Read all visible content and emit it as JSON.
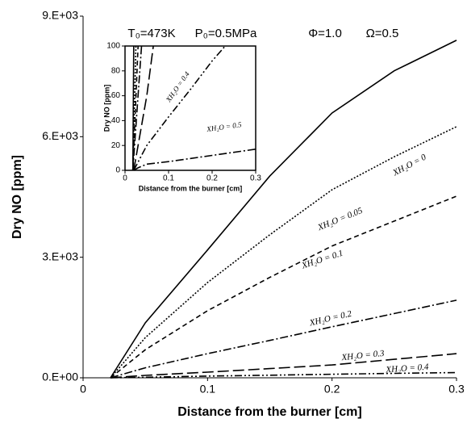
{
  "chart_data": [
    {
      "type": "line",
      "annotations": [
        "T₀=473K",
        "P₀=0.5MPa",
        "Φ=1.0",
        "Ω=0.5"
      ],
      "x_label": "Distance from the burner [cm]",
      "y_label": "Dry NO [ppm]",
      "xlim": [
        0,
        0.3
      ],
      "ylim": [
        0,
        9000
      ],
      "xticks": [
        0,
        0.1,
        0.2,
        0.3
      ],
      "yticks": [
        {
          "value": 0,
          "label": "0.E+00"
        },
        {
          "value": 3000,
          "label": "3.E+03"
        },
        {
          "value": 6000,
          "label": "6.E+03"
        },
        {
          "value": 9000,
          "label": "9.E+03"
        }
      ],
      "x": [
        0.022,
        0.05,
        0.1,
        0.15,
        0.2,
        0.25,
        0.3
      ],
      "series": [
        {
          "name": "XH₂O = 0",
          "color": "#000000",
          "dash": "solid",
          "values": [
            0,
            1370,
            3180,
            5020,
            6590,
            7640,
            8400
          ]
        },
        {
          "name": "XH₂O = 0.05",
          "color": "#000000",
          "dash": "dotted",
          "values": [
            0,
            1000,
            2370,
            3560,
            4680,
            5500,
            6250
          ]
        },
        {
          "name": "XH₂O = 0.1",
          "color": "#000000",
          "dash": "dashed",
          "values": [
            0,
            700,
            1670,
            2500,
            3280,
            3900,
            4520
          ]
        },
        {
          "name": "XH₂O = 0.2",
          "color": "#000000",
          "dash": "dashdot",
          "values": [
            0,
            250,
            600,
            930,
            1270,
            1600,
            1930
          ]
        },
        {
          "name": "XH₂O = 0.3",
          "color": "#000000",
          "dash": "longdash",
          "values": [
            0,
            60,
            140,
            230,
            320,
            460,
            600
          ]
        },
        {
          "name": "XH₂O = 0.4",
          "color": "#000000",
          "dash": "dashdotdot",
          "values": [
            0,
            15,
            43,
            65,
            88,
            110,
            130
          ]
        }
      ]
    },
    {
      "type": "line",
      "x_label": "Distance from the burner [cm]",
      "y_label": "Dry NO [ppm]",
      "xlim": [
        0,
        0.3
      ],
      "ylim": [
        0,
        100
      ],
      "xticks": [
        0,
        0.1,
        0.2,
        0.3
      ],
      "yticks": [
        0,
        20,
        40,
        60,
        80,
        100
      ],
      "series": [
        {
          "color": "#000000",
          "dash": "solid",
          "x": [
            0.018,
            0.02
          ],
          "values": [
            0,
            100
          ]
        },
        {
          "color": "#000000",
          "dash": "dotted",
          "x": [
            0.018,
            0.025
          ],
          "values": [
            0,
            100
          ]
        },
        {
          "color": "#000000",
          "dash": "dashed",
          "x": [
            0.018,
            0.03
          ],
          "values": [
            0,
            100
          ]
        },
        {
          "color": "#000000",
          "dash": "dashdot",
          "x": [
            0.018,
            0.038
          ],
          "values": [
            0,
            100
          ]
        },
        {
          "color": "#000000",
          "dash": "longdash",
          "x": [
            0.02,
            0.05,
            0.065
          ],
          "values": [
            0,
            60,
            100
          ]
        },
        {
          "name": "XH₂O = 0.4",
          "color": "#000000",
          "dash": "dashdotdot",
          "x": [
            0.02,
            0.05,
            0.1,
            0.15,
            0.2,
            0.23
          ],
          "values": [
            0,
            20,
            43,
            65,
            88,
            100
          ]
        },
        {
          "name": "XH₂O = 0.5",
          "color": "#000000",
          "dash": "dashdot",
          "x": [
            0.02,
            0.03,
            0.05,
            0.1,
            0.2,
            0.3
          ],
          "values": [
            0,
            2,
            5,
            7,
            12,
            17
          ]
        }
      ]
    }
  ]
}
